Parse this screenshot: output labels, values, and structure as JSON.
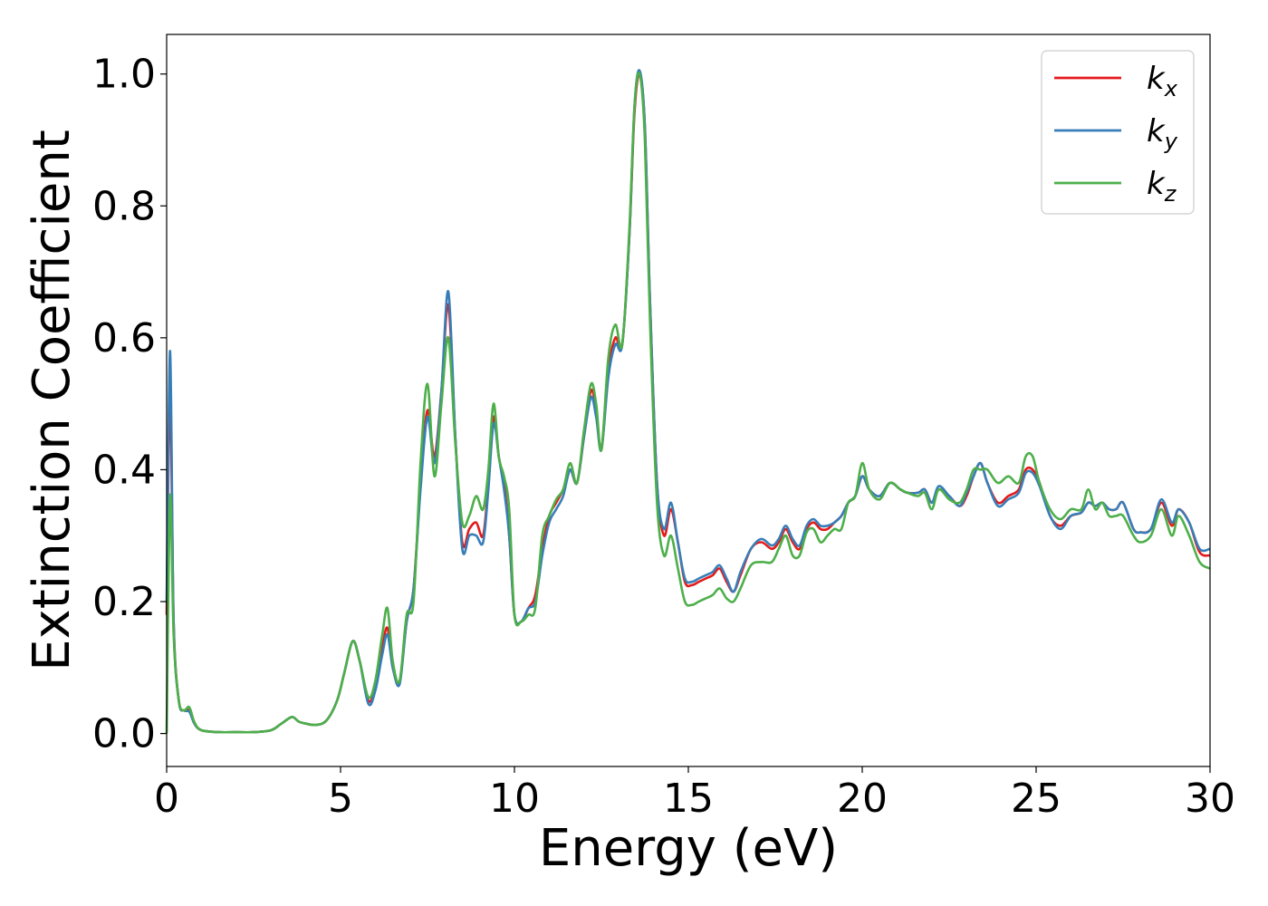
{
  "chart_data": {
    "type": "line",
    "xlabel": "Energy (eV)",
    "ylabel": "Extinction Coefficient",
    "xlim": [
      0,
      30
    ],
    "ylim": [
      -0.05,
      1.06
    ],
    "xticks": [
      0,
      5,
      10,
      15,
      20,
      25,
      30
    ],
    "xtick_labels": [
      "0",
      "5",
      "10",
      "15",
      "20",
      "25",
      "30"
    ],
    "yticks": [
      0.0,
      0.2,
      0.4,
      0.6,
      0.8,
      1.0
    ],
    "ytick_labels": [
      "0.0",
      "0.2",
      "0.4",
      "0.6",
      "0.8",
      "1.0"
    ],
    "grid": false,
    "legend_position": "top-right",
    "series": [
      {
        "name": "k_x",
        "legend_base": "k",
        "legend_sub": "x",
        "color": "#e41a1c",
        "x": [
          0,
          0.1,
          0.2,
          0.35,
          0.5,
          0.65,
          0.8,
          1.0,
          1.5,
          2.0,
          2.5,
          3.0,
          3.3,
          3.6,
          3.8,
          4.0,
          4.3,
          4.6,
          4.9,
          5.1,
          5.35,
          5.55,
          5.8,
          6.0,
          6.2,
          6.35,
          6.5,
          6.7,
          6.9,
          7.1,
          7.3,
          7.5,
          7.7,
          7.9,
          8.1,
          8.3,
          8.5,
          8.7,
          8.9,
          9.1,
          9.25,
          9.4,
          9.55,
          9.7,
          9.85,
          10.0,
          10.2,
          10.4,
          10.6,
          10.8,
          11.0,
          11.2,
          11.4,
          11.6,
          11.8,
          12.0,
          12.2,
          12.35,
          12.5,
          12.7,
          12.9,
          13.1,
          13.3,
          13.45,
          13.6,
          13.75,
          13.9,
          14.1,
          14.3,
          14.5,
          14.7,
          14.9,
          15.1,
          15.3,
          15.5,
          15.7,
          15.9,
          16.1,
          16.3,
          16.5,
          16.8,
          17.1,
          17.4,
          17.6,
          17.8,
          18.0,
          18.2,
          18.4,
          18.6,
          18.8,
          19.0,
          19.2,
          19.4,
          19.6,
          19.8,
          20.0,
          20.2,
          20.5,
          20.8,
          21.1,
          21.3,
          21.6,
          21.8,
          22.0,
          22.2,
          22.5,
          22.8,
          23.0,
          23.2,
          23.4,
          23.6,
          23.9,
          24.2,
          24.5,
          24.7,
          24.9,
          25.1,
          25.4,
          25.7,
          26.0,
          26.3,
          26.5,
          26.7,
          26.9,
          27.1,
          27.3,
          27.5,
          27.8,
          28.0,
          28.3,
          28.6,
          28.9,
          29.1,
          29.4,
          29.7,
          30.0
        ],
        "y": [
          0.18,
          0.52,
          0.17,
          0.05,
          0.035,
          0.035,
          0.015,
          0.005,
          0.002,
          0.002,
          0.002,
          0.005,
          0.015,
          0.025,
          0.018,
          0.015,
          0.013,
          0.02,
          0.05,
          0.09,
          0.14,
          0.11,
          0.05,
          0.07,
          0.13,
          0.16,
          0.1,
          0.08,
          0.17,
          0.22,
          0.38,
          0.49,
          0.42,
          0.52,
          0.65,
          0.45,
          0.29,
          0.31,
          0.32,
          0.3,
          0.38,
          0.48,
          0.42,
          0.38,
          0.3,
          0.18,
          0.17,
          0.19,
          0.21,
          0.28,
          0.33,
          0.35,
          0.37,
          0.4,
          0.38,
          0.45,
          0.52,
          0.49,
          0.43,
          0.55,
          0.6,
          0.59,
          0.75,
          0.94,
          1.0,
          0.92,
          0.65,
          0.38,
          0.3,
          0.34,
          0.29,
          0.23,
          0.225,
          0.23,
          0.235,
          0.24,
          0.25,
          0.23,
          0.215,
          0.24,
          0.28,
          0.29,
          0.28,
          0.29,
          0.31,
          0.29,
          0.28,
          0.31,
          0.32,
          0.31,
          0.31,
          0.32,
          0.33,
          0.35,
          0.36,
          0.39,
          0.37,
          0.36,
          0.38,
          0.37,
          0.365,
          0.365,
          0.37,
          0.35,
          0.37,
          0.36,
          0.345,
          0.36,
          0.39,
          0.41,
          0.38,
          0.35,
          0.36,
          0.37,
          0.4,
          0.4,
          0.38,
          0.33,
          0.315,
          0.33,
          0.335,
          0.35,
          0.345,
          0.35,
          0.34,
          0.34,
          0.35,
          0.31,
          0.305,
          0.31,
          0.35,
          0.315,
          0.34,
          0.32,
          0.275,
          0.27
        ]
      },
      {
        "name": "k_y",
        "legend_base": "k",
        "legend_sub": "y",
        "color": "#377eb8",
        "x": [
          0,
          0.1,
          0.2,
          0.35,
          0.5,
          0.65,
          0.8,
          1.0,
          1.5,
          2.0,
          2.5,
          3.0,
          3.3,
          3.6,
          3.8,
          4.0,
          4.3,
          4.6,
          4.9,
          5.1,
          5.35,
          5.55,
          5.8,
          6.0,
          6.2,
          6.35,
          6.5,
          6.7,
          6.9,
          7.1,
          7.3,
          7.5,
          7.7,
          7.9,
          8.1,
          8.3,
          8.5,
          8.7,
          8.9,
          9.1,
          9.25,
          9.4,
          9.55,
          9.7,
          9.85,
          10.0,
          10.2,
          10.4,
          10.6,
          10.8,
          11.0,
          11.2,
          11.4,
          11.6,
          11.8,
          12.0,
          12.2,
          12.35,
          12.5,
          12.7,
          12.9,
          13.1,
          13.3,
          13.45,
          13.6,
          13.75,
          13.9,
          14.1,
          14.3,
          14.5,
          14.7,
          14.9,
          15.1,
          15.3,
          15.5,
          15.7,
          15.9,
          16.1,
          16.3,
          16.5,
          16.8,
          17.1,
          17.4,
          17.6,
          17.8,
          18.0,
          18.2,
          18.4,
          18.6,
          18.8,
          19.0,
          19.2,
          19.4,
          19.6,
          19.8,
          20.0,
          20.2,
          20.5,
          20.8,
          21.1,
          21.3,
          21.6,
          21.8,
          22.0,
          22.2,
          22.5,
          22.8,
          23.0,
          23.2,
          23.4,
          23.6,
          23.9,
          24.2,
          24.5,
          24.7,
          24.9,
          25.1,
          25.4,
          25.7,
          26.0,
          26.3,
          26.5,
          26.7,
          26.9,
          27.1,
          27.3,
          27.5,
          27.8,
          28.0,
          28.3,
          28.6,
          28.9,
          29.1,
          29.4,
          29.7,
          30.0
        ],
        "y": [
          0.2,
          0.58,
          0.17,
          0.05,
          0.035,
          0.033,
          0.015,
          0.005,
          0.002,
          0.002,
          0.002,
          0.005,
          0.015,
          0.025,
          0.018,
          0.015,
          0.013,
          0.02,
          0.05,
          0.09,
          0.14,
          0.11,
          0.045,
          0.065,
          0.12,
          0.15,
          0.1,
          0.075,
          0.17,
          0.22,
          0.37,
          0.48,
          0.41,
          0.52,
          0.67,
          0.45,
          0.28,
          0.3,
          0.3,
          0.29,
          0.37,
          0.47,
          0.42,
          0.37,
          0.3,
          0.18,
          0.17,
          0.19,
          0.2,
          0.27,
          0.32,
          0.34,
          0.36,
          0.4,
          0.38,
          0.45,
          0.51,
          0.48,
          0.43,
          0.54,
          0.59,
          0.59,
          0.75,
          0.95,
          1.005,
          0.92,
          0.65,
          0.38,
          0.31,
          0.35,
          0.29,
          0.235,
          0.23,
          0.235,
          0.24,
          0.245,
          0.255,
          0.235,
          0.215,
          0.245,
          0.28,
          0.295,
          0.285,
          0.295,
          0.315,
          0.295,
          0.285,
          0.315,
          0.325,
          0.315,
          0.315,
          0.32,
          0.33,
          0.35,
          0.36,
          0.39,
          0.37,
          0.36,
          0.38,
          0.37,
          0.365,
          0.365,
          0.37,
          0.35,
          0.375,
          0.36,
          0.345,
          0.365,
          0.39,
          0.41,
          0.38,
          0.345,
          0.355,
          0.365,
          0.395,
          0.395,
          0.375,
          0.33,
          0.31,
          0.33,
          0.335,
          0.35,
          0.345,
          0.35,
          0.34,
          0.34,
          0.35,
          0.31,
          0.305,
          0.31,
          0.355,
          0.32,
          0.34,
          0.32,
          0.28,
          0.28
        ]
      },
      {
        "name": "k_z",
        "legend_base": "k",
        "legend_sub": "z",
        "color": "#4daf4a",
        "x": [
          0,
          0.1,
          0.2,
          0.35,
          0.5,
          0.65,
          0.8,
          1.0,
          1.5,
          2.0,
          2.5,
          3.0,
          3.3,
          3.6,
          3.8,
          4.0,
          4.3,
          4.6,
          4.9,
          5.1,
          5.35,
          5.55,
          5.8,
          6.0,
          6.2,
          6.35,
          6.5,
          6.7,
          6.9,
          7.1,
          7.3,
          7.5,
          7.7,
          7.9,
          8.1,
          8.3,
          8.5,
          8.7,
          8.9,
          9.1,
          9.25,
          9.4,
          9.55,
          9.7,
          9.85,
          10.0,
          10.2,
          10.4,
          10.6,
          10.8,
          11.0,
          11.2,
          11.4,
          11.6,
          11.8,
          12.0,
          12.2,
          12.35,
          12.5,
          12.7,
          12.9,
          13.1,
          13.3,
          13.45,
          13.6,
          13.75,
          13.9,
          14.1,
          14.3,
          14.5,
          14.7,
          14.9,
          15.1,
          15.3,
          15.5,
          15.7,
          15.9,
          16.1,
          16.3,
          16.5,
          16.8,
          17.1,
          17.4,
          17.6,
          17.8,
          18.0,
          18.2,
          18.4,
          18.6,
          18.8,
          19.0,
          19.2,
          19.4,
          19.6,
          19.8,
          20.0,
          20.2,
          20.5,
          20.8,
          21.1,
          21.3,
          21.6,
          21.8,
          22.0,
          22.2,
          22.5,
          22.8,
          23.0,
          23.2,
          23.4,
          23.6,
          23.9,
          24.2,
          24.5,
          24.7,
          24.9,
          25.1,
          25.4,
          25.7,
          26.0,
          26.3,
          26.5,
          26.7,
          26.9,
          27.1,
          27.3,
          27.5,
          27.8,
          28.0,
          28.3,
          28.6,
          28.9,
          29.1,
          29.4,
          29.7,
          30.0
        ],
        "y": [
          0.0,
          0.36,
          0.15,
          0.05,
          0.035,
          0.04,
          0.017,
          0.005,
          0.002,
          0.002,
          0.002,
          0.005,
          0.015,
          0.025,
          0.018,
          0.015,
          0.013,
          0.02,
          0.05,
          0.09,
          0.14,
          0.11,
          0.055,
          0.08,
          0.15,
          0.19,
          0.11,
          0.08,
          0.18,
          0.2,
          0.41,
          0.53,
          0.39,
          0.5,
          0.6,
          0.44,
          0.32,
          0.33,
          0.36,
          0.34,
          0.4,
          0.5,
          0.42,
          0.39,
          0.34,
          0.18,
          0.17,
          0.18,
          0.19,
          0.3,
          0.33,
          0.355,
          0.37,
          0.41,
          0.38,
          0.46,
          0.53,
          0.5,
          0.43,
          0.57,
          0.62,
          0.59,
          0.76,
          0.95,
          1.0,
          0.9,
          0.62,
          0.35,
          0.27,
          0.3,
          0.25,
          0.2,
          0.195,
          0.2,
          0.205,
          0.21,
          0.22,
          0.205,
          0.2,
          0.22,
          0.255,
          0.26,
          0.26,
          0.28,
          0.3,
          0.27,
          0.27,
          0.305,
          0.31,
          0.29,
          0.3,
          0.31,
          0.31,
          0.35,
          0.36,
          0.41,
          0.37,
          0.355,
          0.38,
          0.37,
          0.365,
          0.36,
          0.365,
          0.34,
          0.37,
          0.355,
          0.35,
          0.37,
          0.4,
          0.4,
          0.4,
          0.38,
          0.39,
          0.38,
          0.42,
          0.42,
          0.38,
          0.34,
          0.325,
          0.34,
          0.34,
          0.37,
          0.34,
          0.35,
          0.33,
          0.33,
          0.33,
          0.3,
          0.29,
          0.3,
          0.34,
          0.3,
          0.33,
          0.3,
          0.26,
          0.25
        ]
      }
    ]
  }
}
